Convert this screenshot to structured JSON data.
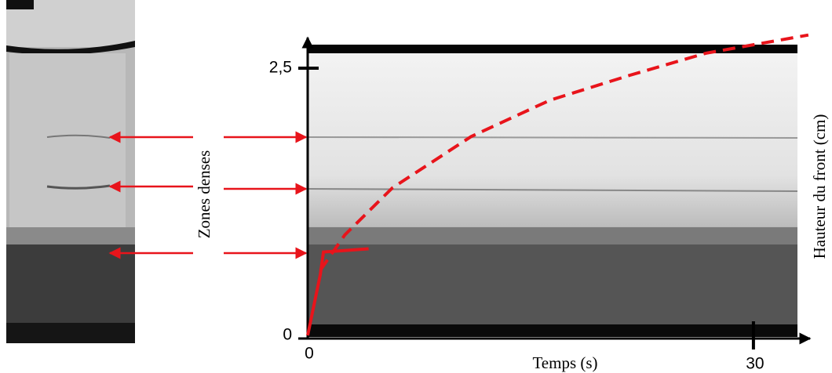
{
  "chart_data": {
    "type": "line",
    "xlabel": "Temps (s)",
    "ylabel": "Hauteur du front (cm)",
    "annotation": "Zones denses",
    "xlim": [
      0,
      33.7
    ],
    "ylim": [
      0,
      2.85
    ],
    "xticks": [
      0,
      30
    ],
    "yticks": [
      0,
      {
        "value": 2.5,
        "label": "2,5"
      }
    ],
    "series": [
      {
        "color": "#e8141b",
        "dashed": true,
        "x": [
          0.85,
          2.5,
          5.7,
          11,
          16.3,
          21.6,
          26.8,
          33.7
        ],
        "values": [
          0.61,
          0.94,
          1.38,
          1.86,
          2.2,
          2.43,
          2.64,
          2.81
        ]
      },
      {
        "color": "#e8141b",
        "dashed": false,
        "x": [
          0,
          0.85,
          1.06,
          4.1
        ],
        "values": [
          0,
          0.57,
          0.78,
          0.81
        ]
      }
    ]
  }
}
